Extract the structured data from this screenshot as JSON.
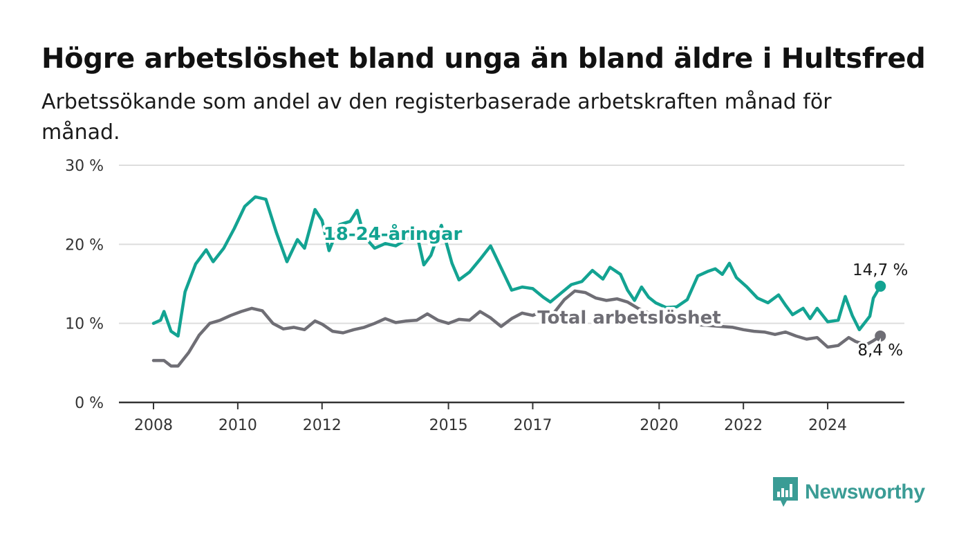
{
  "title": "Högre arbetslöshet bland unga än bland äldre i Hultsfred",
  "subtitle": "Arbetssökande som andel av den registerbaserade arbetskraften månad för månad.",
  "branding": {
    "logo_text": "Newsworthy",
    "logo_icon": "bar-chart-speech-bubble-icon"
  },
  "chart_data": {
    "type": "line",
    "title": "",
    "xlabel": "",
    "ylabel": "",
    "x_ticks": [
      "2008",
      "2010",
      "2012",
      "2015",
      "2017",
      "2020",
      "2022",
      "2024"
    ],
    "y_ticks": [
      "0 %",
      "10 %",
      "20 %",
      "30 %"
    ],
    "ylim": [
      0,
      30
    ],
    "xlim": [
      "2008-01",
      "2025-01"
    ],
    "grid": true,
    "colors": {
      "youth": "#13a392",
      "total": "#6f6e75",
      "grid": "#dddddd",
      "axis": "#333333"
    },
    "end_labels": {
      "youth": "14,7 %",
      "total": "8,4 %"
    },
    "series": [
      {
        "name": "18-24-åringar",
        "color": "#13a392",
        "points": [
          [
            "2008-01",
            10.0
          ],
          [
            "2008-03",
            10.4
          ],
          [
            "2008-04",
            11.5
          ],
          [
            "2008-06",
            9.0
          ],
          [
            "2008-08",
            8.4
          ],
          [
            "2008-10",
            14.0
          ],
          [
            "2009-01",
            17.5
          ],
          [
            "2009-04",
            19.3
          ],
          [
            "2009-06",
            17.8
          ],
          [
            "2009-09",
            19.5
          ],
          [
            "2009-12",
            22.0
          ],
          [
            "2010-03",
            24.8
          ],
          [
            "2010-06",
            26.0
          ],
          [
            "2010-09",
            25.7
          ],
          [
            "2010-12",
            21.5
          ],
          [
            "2011-03",
            17.8
          ],
          [
            "2011-06",
            20.6
          ],
          [
            "2011-08",
            19.5
          ],
          [
            "2011-11",
            24.4
          ],
          [
            "2012-01",
            23.0
          ],
          [
            "2012-03",
            19.2
          ],
          [
            "2012-06",
            22.5
          ],
          [
            "2012-09",
            22.9
          ],
          [
            "2012-11",
            24.3
          ],
          [
            "2013-01",
            21.0
          ],
          [
            "2013-04",
            19.5
          ],
          [
            "2013-07",
            20.1
          ],
          [
            "2013-10",
            19.8
          ],
          [
            "2014-01",
            20.6
          ],
          [
            "2014-04",
            21.3
          ],
          [
            "2014-06",
            17.4
          ],
          [
            "2014-08",
            18.6
          ],
          [
            "2014-11",
            22.4
          ],
          [
            "2015-02",
            17.6
          ],
          [
            "2015-04",
            15.5
          ],
          [
            "2015-07",
            16.5
          ],
          [
            "2015-10",
            18.1
          ],
          [
            "2016-01",
            19.8
          ],
          [
            "2016-04",
            17.0
          ],
          [
            "2016-07",
            14.2
          ],
          [
            "2016-10",
            14.6
          ],
          [
            "2017-01",
            14.4
          ],
          [
            "2017-04",
            13.3
          ],
          [
            "2017-06",
            12.7
          ],
          [
            "2017-09",
            13.8
          ],
          [
            "2017-12",
            14.9
          ],
          [
            "2018-03",
            15.3
          ],
          [
            "2018-06",
            16.7
          ],
          [
            "2018-09",
            15.6
          ],
          [
            "2018-11",
            17.1
          ],
          [
            "2019-02",
            16.2
          ],
          [
            "2019-04",
            14.2
          ],
          [
            "2019-06",
            12.9
          ],
          [
            "2019-08",
            14.6
          ],
          [
            "2019-10",
            13.3
          ],
          [
            "2019-12",
            12.6
          ],
          [
            "2020-03",
            12.0
          ],
          [
            "2020-06",
            12.1
          ],
          [
            "2020-09",
            13.0
          ],
          [
            "2020-12",
            16.0
          ],
          [
            "2021-03",
            16.6
          ],
          [
            "2021-05",
            16.9
          ],
          [
            "2021-07",
            16.2
          ],
          [
            "2021-09",
            17.6
          ],
          [
            "2021-11",
            15.8
          ],
          [
            "2022-02",
            14.6
          ],
          [
            "2022-05",
            13.2
          ],
          [
            "2022-08",
            12.6
          ],
          [
            "2022-11",
            13.6
          ],
          [
            "2023-01",
            12.3
          ],
          [
            "2023-03",
            11.1
          ],
          [
            "2023-06",
            11.9
          ],
          [
            "2023-08",
            10.6
          ],
          [
            "2023-10",
            11.9
          ],
          [
            "2024-01",
            10.2
          ],
          [
            "2024-04",
            10.4
          ],
          [
            "2024-06",
            13.4
          ],
          [
            "2024-08",
            11.0
          ],
          [
            "2024-10",
            9.2
          ],
          [
            "2025-01",
            10.9
          ],
          [
            "2025-02",
            13.2
          ],
          [
            "2025-04",
            14.7
          ]
        ]
      },
      {
        "name": "Total arbetslöshet",
        "color": "#6f6e75",
        "points": [
          [
            "2008-01",
            5.3
          ],
          [
            "2008-04",
            5.3
          ],
          [
            "2008-06",
            4.6
          ],
          [
            "2008-08",
            4.6
          ],
          [
            "2008-11",
            6.3
          ],
          [
            "2009-02",
            8.5
          ],
          [
            "2009-05",
            10.0
          ],
          [
            "2009-08",
            10.4
          ],
          [
            "2009-11",
            11.0
          ],
          [
            "2010-02",
            11.5
          ],
          [
            "2010-05",
            11.9
          ],
          [
            "2010-08",
            11.6
          ],
          [
            "2010-11",
            10.0
          ],
          [
            "2011-02",
            9.3
          ],
          [
            "2011-05",
            9.5
          ],
          [
            "2011-08",
            9.2
          ],
          [
            "2011-11",
            10.3
          ],
          [
            "2012-01",
            9.9
          ],
          [
            "2012-04",
            9.0
          ],
          [
            "2012-07",
            8.8
          ],
          [
            "2012-10",
            9.2
          ],
          [
            "2013-01",
            9.5
          ],
          [
            "2013-04",
            10.0
          ],
          [
            "2013-07",
            10.6
          ],
          [
            "2013-10",
            10.1
          ],
          [
            "2014-01",
            10.3
          ],
          [
            "2014-04",
            10.4
          ],
          [
            "2014-07",
            11.2
          ],
          [
            "2014-10",
            10.4
          ],
          [
            "2015-01",
            10.0
          ],
          [
            "2015-04",
            10.5
          ],
          [
            "2015-07",
            10.4
          ],
          [
            "2015-10",
            11.5
          ],
          [
            "2016-01",
            10.7
          ],
          [
            "2016-04",
            9.6
          ],
          [
            "2016-07",
            10.6
          ],
          [
            "2016-10",
            11.3
          ],
          [
            "2017-01",
            11.0
          ],
          [
            "2017-04",
            11.6
          ],
          [
            "2017-07",
            11.3
          ],
          [
            "2017-10",
            13.0
          ],
          [
            "2018-01",
            14.1
          ],
          [
            "2018-04",
            13.9
          ],
          [
            "2018-07",
            13.2
          ],
          [
            "2018-10",
            12.9
          ],
          [
            "2019-01",
            13.1
          ],
          [
            "2019-04",
            12.7
          ],
          [
            "2019-07",
            11.9
          ],
          [
            "2019-10",
            11.3
          ],
          [
            "2020-01",
            10.9
          ],
          [
            "2020-04",
            10.7
          ],
          [
            "2020-07",
            10.3
          ],
          [
            "2020-10",
            10.0
          ],
          [
            "2021-01",
            9.8
          ],
          [
            "2021-04",
            9.7
          ],
          [
            "2021-07",
            9.6
          ],
          [
            "2021-10",
            9.5
          ],
          [
            "2022-01",
            9.2
          ],
          [
            "2022-04",
            9.0
          ],
          [
            "2022-07",
            8.9
          ],
          [
            "2022-10",
            8.6
          ],
          [
            "2023-01",
            8.9
          ],
          [
            "2023-04",
            8.4
          ],
          [
            "2023-07",
            8.0
          ],
          [
            "2023-10",
            8.2
          ],
          [
            "2024-01",
            7.0
          ],
          [
            "2024-04",
            7.2
          ],
          [
            "2024-07",
            8.2
          ],
          [
            "2024-09",
            7.7
          ],
          [
            "2024-12",
            7.3
          ],
          [
            "2025-02",
            7.8
          ],
          [
            "2025-04",
            8.4
          ]
        ]
      }
    ]
  }
}
